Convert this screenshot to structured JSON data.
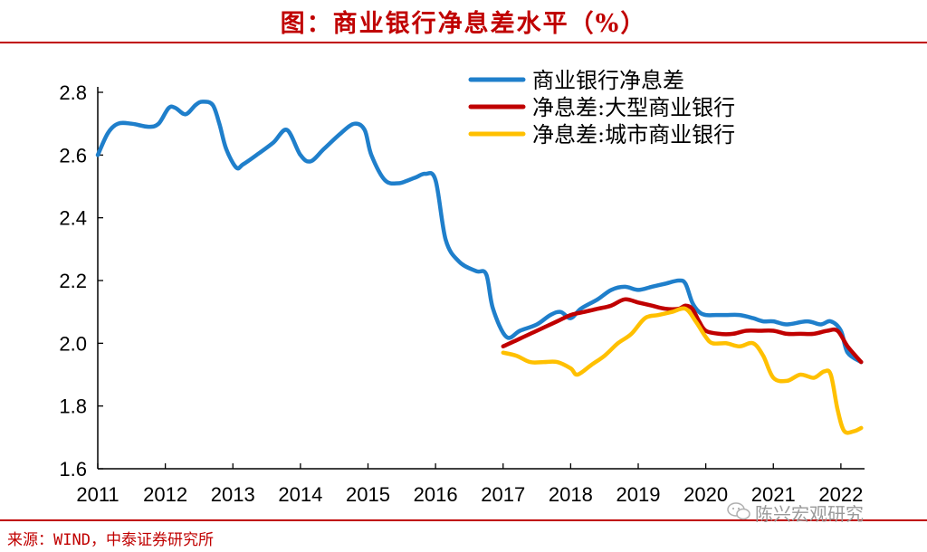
{
  "header": {
    "title": "图：商业银行净息差水平（%）"
  },
  "footer": {
    "source": "来源：WIND，中泰证券研究所"
  },
  "watermark": {
    "text": "陈兴宏观研究",
    "icon": "wechat-icon"
  },
  "colors": {
    "accent": "#c00000",
    "blue": "#1f7fcb",
    "red": "#c00000",
    "yellow": "#ffc000"
  },
  "chart_data": {
    "type": "line",
    "title": "图：商业银行净息差水平（%）",
    "xlabel": "",
    "ylabel": "",
    "xlim": [
      2011.0,
      2022.35
    ],
    "ylim": [
      1.6,
      2.8
    ],
    "yticks": [
      "1.6",
      "1.8",
      "2.0",
      "2.2",
      "2.4",
      "2.6",
      "2.8"
    ],
    "xticks": [
      "2011",
      "2012",
      "2013",
      "2014",
      "2015",
      "2016",
      "2017",
      "2018",
      "2019",
      "2020",
      "2021",
      "2022"
    ],
    "grid": false,
    "legend_position": "top-right",
    "series": [
      {
        "name": "商业银行净息差",
        "color": "#1f7fcb",
        "x": [
          2011.0,
          2011.15,
          2011.3,
          2011.5,
          2011.75,
          2011.9,
          2012.05,
          2012.15,
          2012.3,
          2012.45,
          2012.55,
          2012.7,
          2012.8,
          2012.9,
          2013.05,
          2013.15,
          2013.35,
          2013.6,
          2013.8,
          2014.0,
          2014.15,
          2014.35,
          2014.6,
          2014.8,
          2014.95,
          2015.05,
          2015.25,
          2015.45,
          2015.6,
          2015.72,
          2015.85,
          2016.0,
          2016.15,
          2016.35,
          2016.6,
          2016.75,
          2016.85,
          2017.05,
          2017.25,
          2017.5,
          2017.7,
          2017.85,
          2018.0,
          2018.15,
          2018.4,
          2018.6,
          2018.8,
          2019.0,
          2019.2,
          2019.4,
          2019.6,
          2019.7,
          2019.8,
          2019.9,
          2020.0,
          2020.15,
          2020.3,
          2020.5,
          2020.7,
          2020.85,
          2021.0,
          2021.2,
          2021.5,
          2021.7,
          2021.85,
          2022.0,
          2022.1,
          2022.3
        ],
        "values": [
          2.6,
          2.67,
          2.7,
          2.7,
          2.69,
          2.7,
          2.75,
          2.75,
          2.73,
          2.76,
          2.77,
          2.76,
          2.7,
          2.62,
          2.56,
          2.57,
          2.6,
          2.64,
          2.68,
          2.6,
          2.58,
          2.62,
          2.67,
          2.7,
          2.68,
          2.6,
          2.52,
          2.51,
          2.52,
          2.53,
          2.54,
          2.52,
          2.33,
          2.26,
          2.23,
          2.22,
          2.11,
          2.02,
          2.04,
          2.06,
          2.09,
          2.1,
          2.08,
          2.11,
          2.14,
          2.17,
          2.18,
          2.17,
          2.18,
          2.19,
          2.2,
          2.19,
          2.13,
          2.1,
          2.09,
          2.09,
          2.09,
          2.09,
          2.08,
          2.07,
          2.07,
          2.06,
          2.07,
          2.06,
          2.07,
          2.04,
          1.97,
          1.94
        ]
      },
      {
        "name": "净息差:大型商业银行",
        "color": "#c00000",
        "x": [
          2017.0,
          2017.2,
          2017.5,
          2017.8,
          2018.0,
          2018.2,
          2018.4,
          2018.6,
          2018.8,
          2019.0,
          2019.2,
          2019.4,
          2019.6,
          2019.7,
          2019.8,
          2019.9,
          2020.0,
          2020.2,
          2020.4,
          2020.6,
          2020.8,
          2021.0,
          2021.2,
          2021.4,
          2021.6,
          2021.8,
          2021.95,
          2022.1,
          2022.3
        ],
        "values": [
          1.99,
          2.01,
          2.04,
          2.07,
          2.09,
          2.1,
          2.11,
          2.12,
          2.14,
          2.13,
          2.12,
          2.11,
          2.11,
          2.12,
          2.11,
          2.07,
          2.04,
          2.03,
          2.03,
          2.04,
          2.04,
          2.04,
          2.03,
          2.03,
          2.03,
          2.04,
          2.04,
          1.99,
          1.94
        ]
      },
      {
        "name": "净息差:城市商业银行",
        "color": "#ffc000",
        "x": [
          2017.0,
          2017.2,
          2017.4,
          2017.6,
          2017.8,
          2018.0,
          2018.1,
          2018.3,
          2018.5,
          2018.7,
          2018.9,
          2019.1,
          2019.3,
          2019.5,
          2019.7,
          2019.85,
          2020.0,
          2020.1,
          2020.3,
          2020.5,
          2020.7,
          2020.85,
          2021.0,
          2021.2,
          2021.4,
          2021.6,
          2021.75,
          2021.85,
          2021.95,
          2022.05,
          2022.2,
          2022.3
        ],
        "values": [
          1.97,
          1.96,
          1.94,
          1.94,
          1.94,
          1.92,
          1.9,
          1.93,
          1.96,
          2.0,
          2.03,
          2.08,
          2.09,
          2.1,
          2.11,
          2.07,
          2.02,
          2.0,
          2.0,
          1.99,
          2.0,
          1.96,
          1.89,
          1.88,
          1.9,
          1.89,
          1.91,
          1.9,
          1.79,
          1.72,
          1.72,
          1.73
        ]
      }
    ]
  }
}
